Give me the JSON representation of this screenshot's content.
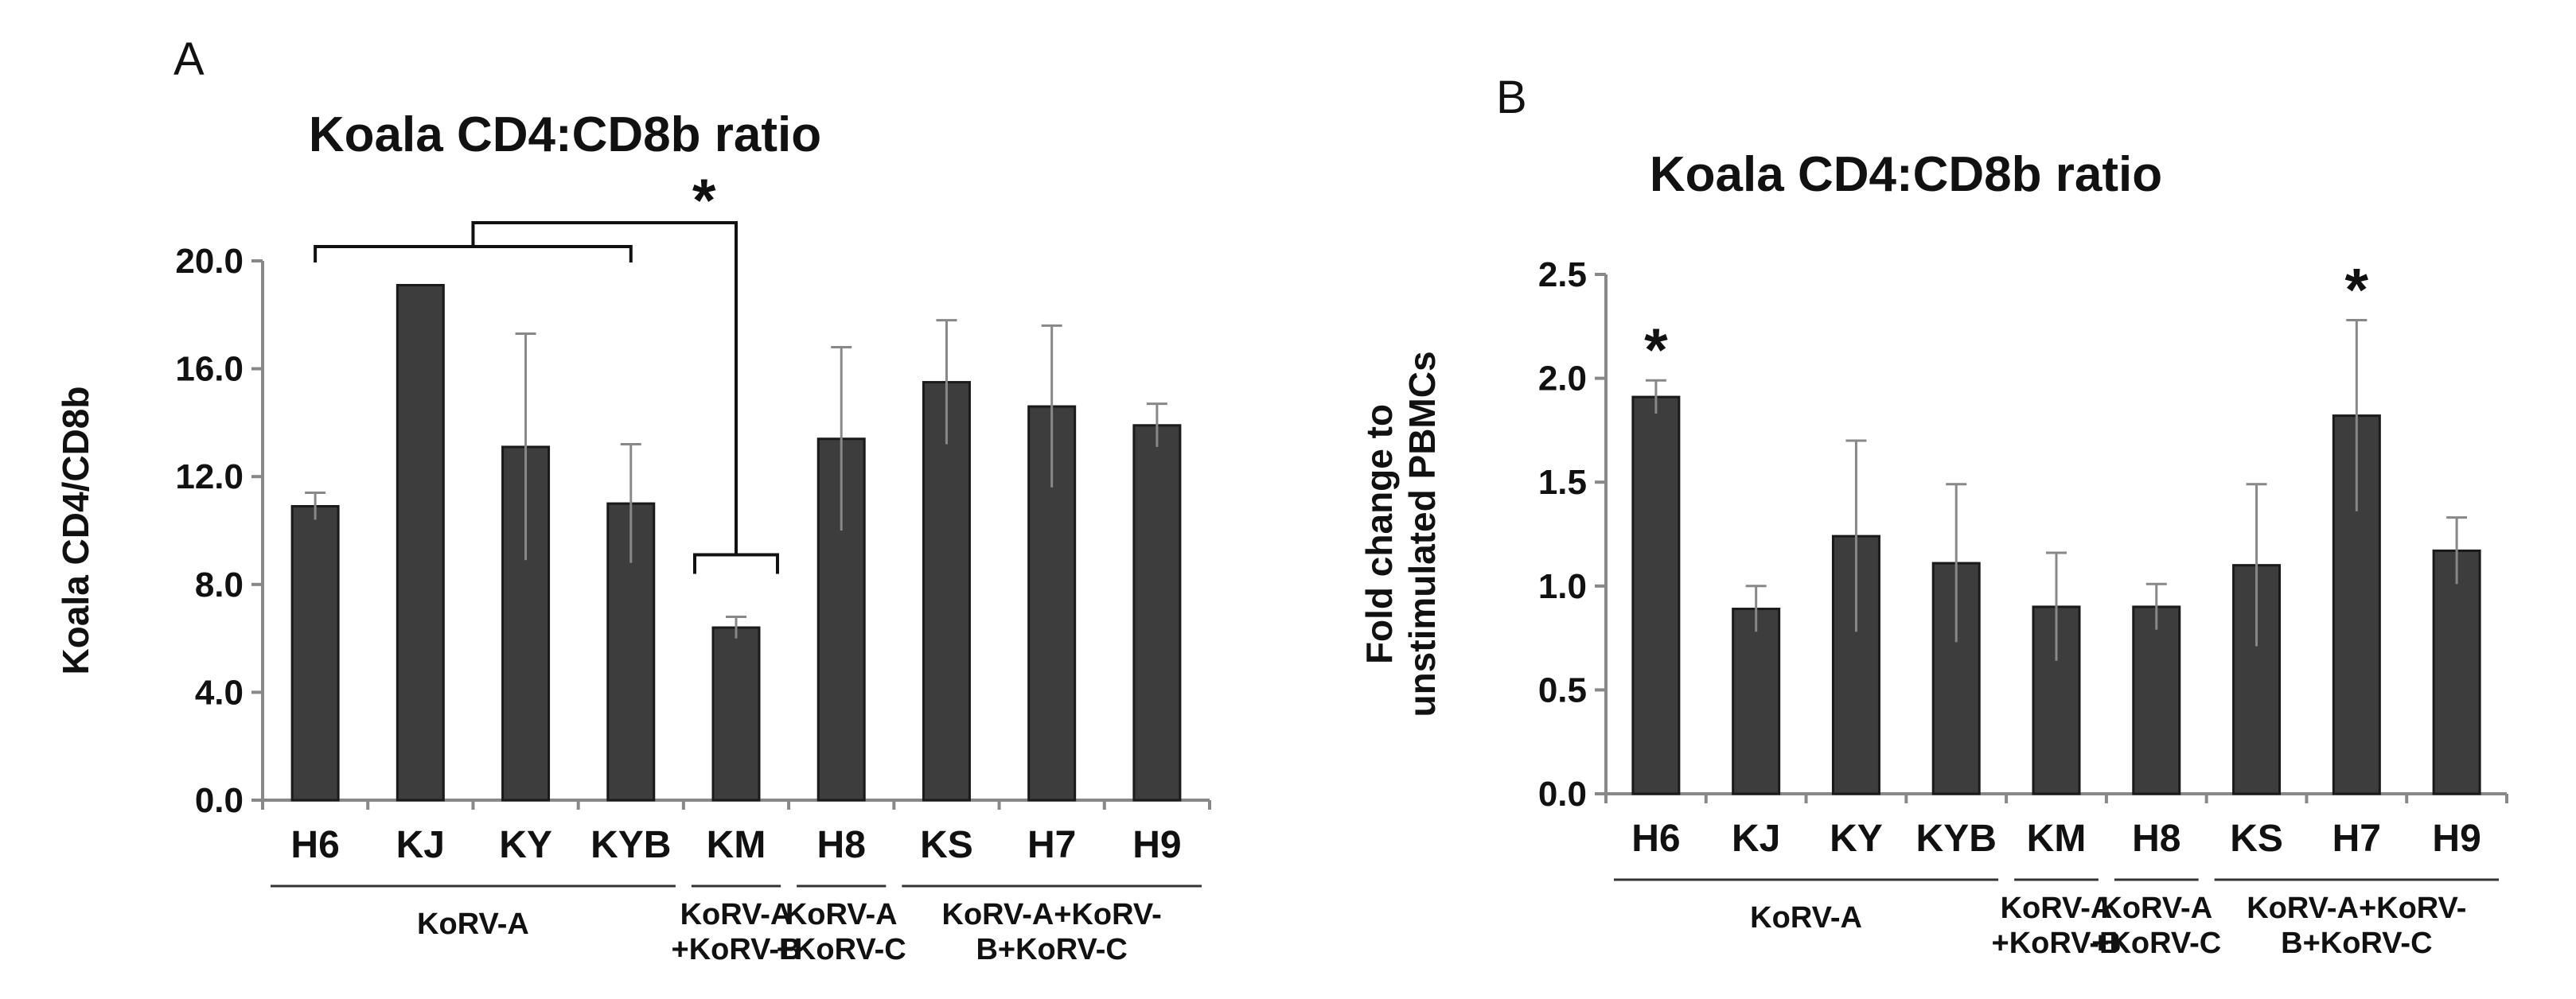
{
  "chart_data": [
    {
      "type": "bar",
      "panel_label": "A",
      "title": "Koala CD4:CD8b ratio",
      "ylabel": "Koala CD4/CD8b",
      "xlabel": "",
      "ylim": [
        0,
        20
      ],
      "yticks": [
        0,
        4,
        8,
        12,
        16,
        20
      ],
      "ytick_labels": [
        "0.0",
        "4.0",
        "8.0",
        "12.0",
        "16.0",
        "20.0"
      ],
      "categories": [
        "H6",
        "KJ",
        "KY",
        "KYB",
        "KM",
        "H8",
        "KS",
        "H7",
        "H9"
      ],
      "values": [
        10.9,
        19.1,
        13.1,
        11.0,
        6.4,
        13.4,
        15.5,
        14.6,
        13.9
      ],
      "errors": [
        0.5,
        0.0,
        4.2,
        2.2,
        0.4,
        3.4,
        2.3,
        3.0,
        0.8
      ],
      "groups": [
        {
          "label": [
            "KoRV-A"
          ],
          "start": 0,
          "end": 3
        },
        {
          "label": [
            "KoRV-A",
            "+KoRV-B"
          ],
          "start": 4,
          "end": 4
        },
        {
          "label": [
            "KoRV-A",
            "+KoRV-C"
          ],
          "start": 5,
          "end": 5
        },
        {
          "label": [
            "KoRV-A+KoRV-",
            "B+KoRV-C"
          ],
          "start": 6,
          "end": 8
        }
      ],
      "significance": {
        "marker": "*",
        "from_group": {
          "start": 0,
          "end": 3
        },
        "to_category": 4
      }
    },
    {
      "type": "bar",
      "panel_label": "B",
      "title": "Koala CD4:CD8b ratio",
      "ylabel": [
        "Fold change to",
        "unstimulated PBMCs"
      ],
      "xlabel": "",
      "ylim": [
        0,
        2.5
      ],
      "yticks": [
        0,
        0.5,
        1.0,
        1.5,
        2.0,
        2.5
      ],
      "ytick_labels": [
        "0.0",
        "0.5",
        "1.0",
        "1.5",
        "2.0",
        "2.5"
      ],
      "categories": [
        "H6",
        "KJ",
        "KY",
        "KYB",
        "KM",
        "H8",
        "KS",
        "H7",
        "H9"
      ],
      "values": [
        1.91,
        0.89,
        1.24,
        1.11,
        0.9,
        0.9,
        1.1,
        1.82,
        1.17
      ],
      "errors": [
        0.08,
        0.11,
        0.46,
        0.38,
        0.26,
        0.11,
        0.39,
        0.46,
        0.16
      ],
      "groups": [
        {
          "label": [
            "KoRV-A"
          ],
          "start": 0,
          "end": 3
        },
        {
          "label": [
            "KoRV-A",
            "+KoRV-B"
          ],
          "start": 4,
          "end": 4
        },
        {
          "label": [
            "KoRV-A",
            "+KoRV-C"
          ],
          "start": 5,
          "end": 5
        },
        {
          "label": [
            "KoRV-A+KoRV-",
            "B+KoRV-C"
          ],
          "start": 6,
          "end": 8
        }
      ],
      "significance": {
        "marker": "*",
        "categories": [
          0,
          7
        ]
      }
    }
  ],
  "colors": {
    "bar": "#3d3d3d",
    "bar_edge": "#1a1a1a",
    "axis": "#888888",
    "text": "#111111"
  }
}
